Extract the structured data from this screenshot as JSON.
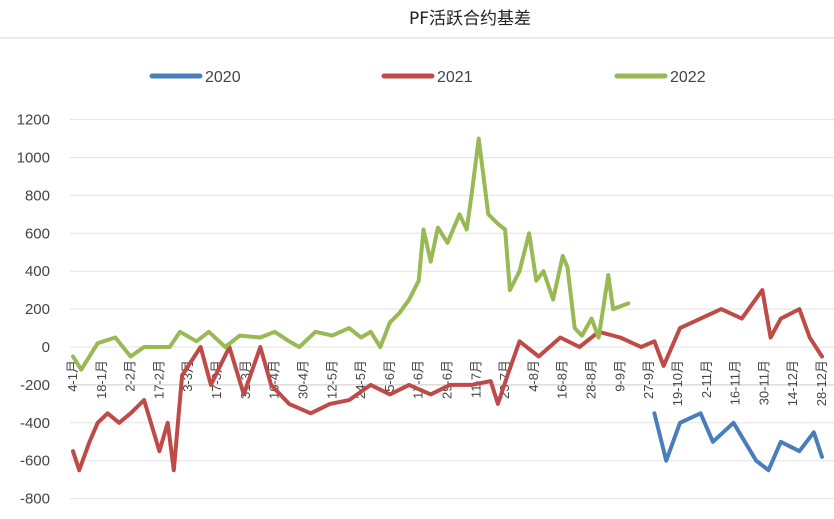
{
  "chart_data": {
    "type": "line",
    "title": "PF活跃合约基差",
    "xlabel": "",
    "ylabel": "",
    "ylim": [
      -800,
      1200
    ],
    "yticks": [
      1200,
      1000,
      800,
      600,
      400,
      200,
      0,
      -200,
      -400,
      -600,
      -800
    ],
    "grid": true,
    "legend_position": "top",
    "x_tick_labels": [
      "4-1月",
      "18-1月",
      "2-2月",
      "17-2月",
      "3-3月",
      "17-3月",
      "31-3月",
      "16-4月",
      "30-4月",
      "12-5月",
      "24-5月",
      "5-6月",
      "17-6月",
      "29-6月",
      "11-7月",
      "23-7月",
      "4-8月",
      "16-8月",
      "28-8月",
      "9-9月",
      "27-9月",
      "19-10月",
      "2-11月",
      "16-11月",
      "30-11月",
      "14-12月",
      "28-12月"
    ],
    "series": [
      {
        "name": "2020",
        "color": "#4a7ebb",
        "points": [
          [
            "1-10",
            -350
          ],
          [
            "10-10",
            -600
          ],
          [
            "20-10",
            -400
          ],
          [
            "30-10",
            -350
          ],
          [
            "5-11",
            -500
          ],
          [
            "15-11",
            -400
          ],
          [
            "26-11",
            -600
          ],
          [
            "2-12",
            -650
          ],
          [
            "8-12",
            -500
          ],
          [
            "17-12",
            -550
          ],
          [
            "24-12",
            -450
          ],
          [
            "28-12",
            -580
          ]
        ]
      },
      {
        "name": "2021",
        "color": "#be4b48",
        "points": [
          [
            "4-1",
            -550
          ],
          [
            "7-1",
            -650
          ],
          [
            "12-1",
            -500
          ],
          [
            "16-1",
            -400
          ],
          [
            "21-1",
            -350
          ],
          [
            "27-1",
            -400
          ],
          [
            "2-2",
            -350
          ],
          [
            "9-2",
            -280
          ],
          [
            "17-2",
            -550
          ],
          [
            "21-2",
            -400
          ],
          [
            "24-2",
            -650
          ],
          [
            "28-2",
            -150
          ],
          [
            "9-3",
            0
          ],
          [
            "14-3",
            -200
          ],
          [
            "23-3",
            0
          ],
          [
            "30-3",
            -250
          ],
          [
            "8-4",
            0
          ],
          [
            "14-4",
            -200
          ],
          [
            "23-4",
            -300
          ],
          [
            "3-5",
            -350
          ],
          [
            "11-5",
            -300
          ],
          [
            "19-5",
            -280
          ],
          [
            "28-5",
            -200
          ],
          [
            "5-6",
            -250
          ],
          [
            "13-6",
            -200
          ],
          [
            "22-6",
            -250
          ],
          [
            "30-6",
            -200
          ],
          [
            "9-7",
            -200
          ],
          [
            "17-7",
            -180
          ],
          [
            "20-7",
            -300
          ],
          [
            "24-7",
            -150
          ],
          [
            "29-7",
            30
          ],
          [
            "6-8",
            -50
          ],
          [
            "15-8",
            50
          ],
          [
            "23-8",
            0
          ],
          [
            "31-8",
            80
          ],
          [
            "9-9",
            50
          ],
          [
            "22-9",
            0
          ],
          [
            "1-10",
            30
          ],
          [
            "8-10",
            -100
          ],
          [
            "20-10",
            100
          ],
          [
            "30-10",
            150
          ],
          [
            "9-11",
            200
          ],
          [
            "19-11",
            150
          ],
          [
            "29-11",
            300
          ],
          [
            "3-12",
            50
          ],
          [
            "8-12",
            150
          ],
          [
            "17-12",
            200
          ],
          [
            "22-12",
            50
          ],
          [
            "28-12",
            -50
          ]
        ]
      },
      {
        "name": "2022",
        "color": "#98b954",
        "points": [
          [
            "4-1",
            -50
          ],
          [
            "8-1",
            -120
          ],
          [
            "16-1",
            20
          ],
          [
            "25-1",
            50
          ],
          [
            "2-2",
            -50
          ],
          [
            "9-2",
            0
          ],
          [
            "22-2",
            0
          ],
          [
            "27-2",
            80
          ],
          [
            "7-3",
            30
          ],
          [
            "13-3",
            80
          ],
          [
            "21-3",
            0
          ],
          [
            "28-3",
            60
          ],
          [
            "8-4",
            50
          ],
          [
            "16-4",
            80
          ],
          [
            "23-4",
            30
          ],
          [
            "28-4",
            0
          ],
          [
            "5-5",
            80
          ],
          [
            "12-5",
            60
          ],
          [
            "19-5",
            100
          ],
          [
            "24-5",
            50
          ],
          [
            "28-5",
            80
          ],
          [
            "1-6",
            0
          ],
          [
            "5-6",
            130
          ],
          [
            "9-6",
            180
          ],
          [
            "13-6",
            250
          ],
          [
            "17-6",
            350
          ],
          [
            "19-6",
            620
          ],
          [
            "22-6",
            450
          ],
          [
            "25-6",
            630
          ],
          [
            "29-6",
            550
          ],
          [
            "4-7",
            700
          ],
          [
            "7-7",
            620
          ],
          [
            "9-7",
            800
          ],
          [
            "12-7",
            1100
          ],
          [
            "16-7",
            700
          ],
          [
            "20-7",
            650
          ],
          [
            "23-7",
            620
          ],
          [
            "25-7",
            300
          ],
          [
            "29-7",
            400
          ],
          [
            "2-8",
            600
          ],
          [
            "5-8",
            350
          ],
          [
            "8-8",
            400
          ],
          [
            "12-8",
            250
          ],
          [
            "16-8",
            480
          ],
          [
            "18-8",
            420
          ],
          [
            "21-8",
            100
          ],
          [
            "24-8",
            60
          ],
          [
            "28-8",
            150
          ],
          [
            "31-8",
            50
          ],
          [
            "4-9",
            380
          ],
          [
            "6-9",
            200
          ],
          [
            "14-9",
            230
          ]
        ]
      }
    ]
  }
}
